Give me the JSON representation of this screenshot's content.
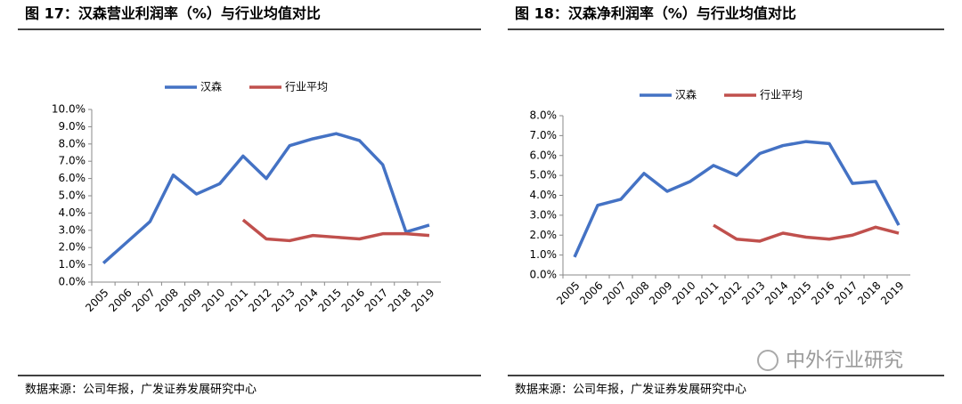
{
  "chart_data": [
    {
      "type": "line",
      "title": "图 17：汉森营业利润率（%）与行业均值对比",
      "categories": [
        "2005",
        "2006",
        "2007",
        "2008",
        "2009",
        "2010",
        "2011",
        "2012",
        "2013",
        "2014",
        "2015",
        "2016",
        "2017",
        "2018",
        "2019"
      ],
      "series": [
        {
          "name": "汉森",
          "color": "#4472c4",
          "values": [
            1.1,
            2.3,
            3.5,
            6.2,
            5.1,
            5.7,
            7.3,
            6.0,
            7.9,
            8.3,
            8.6,
            8.2,
            6.8,
            2.9,
            3.3
          ]
        },
        {
          "name": "行业平均",
          "color": "#c0504d",
          "values": [
            null,
            null,
            null,
            null,
            null,
            null,
            3.6,
            2.5,
            2.4,
            2.7,
            2.6,
            2.5,
            2.8,
            2.8,
            2.7
          ]
        }
      ],
      "ylim": [
        0,
        10
      ],
      "yticks": [
        {
          "value": 0,
          "label": "0.0%"
        },
        {
          "value": 1,
          "label": "1.0%"
        },
        {
          "value": 2,
          "label": "2.0%"
        },
        {
          "value": 3,
          "label": "3.0%"
        },
        {
          "value": 4,
          "label": "4.0%"
        },
        {
          "value": 5,
          "label": "5.0%"
        },
        {
          "value": 6,
          "label": "6.0%"
        },
        {
          "value": 7,
          "label": "7.0%"
        },
        {
          "value": 8,
          "label": "8.0%"
        },
        {
          "value": 9,
          "label": "9.0%"
        },
        {
          "value": 10,
          "label": "10.0%"
        }
      ],
      "grid": false,
      "legend": "top",
      "source": "数据来源：公司年报，广发证券发展研究中心"
    },
    {
      "type": "line",
      "title": "图 18：汉森净利润率（%）与行业均值对比",
      "categories": [
        "2005",
        "2006",
        "2007",
        "2008",
        "2009",
        "2010",
        "2011",
        "2012",
        "2013",
        "2014",
        "2015",
        "2016",
        "2017",
        "2018",
        "2019"
      ],
      "series": [
        {
          "name": "汉森",
          "color": "#4472c4",
          "values": [
            0.9,
            3.5,
            3.8,
            5.1,
            4.2,
            4.7,
            5.5,
            5.0,
            6.1,
            6.5,
            6.7,
            6.6,
            4.6,
            4.7,
            2.5
          ]
        },
        {
          "name": "行业平均",
          "color": "#c0504d",
          "values": [
            null,
            null,
            null,
            null,
            null,
            null,
            2.5,
            1.8,
            1.7,
            2.1,
            1.9,
            1.8,
            2.0,
            2.4,
            2.1
          ]
        }
      ],
      "ylim": [
        0,
        8
      ],
      "yticks": [
        {
          "value": 0,
          "label": "0.0%"
        },
        {
          "value": 1,
          "label": "1.0%"
        },
        {
          "value": 2,
          "label": "2.0%"
        },
        {
          "value": 3,
          "label": "3.0%"
        },
        {
          "value": 4,
          "label": "4.0%"
        },
        {
          "value": 5,
          "label": "5.0%"
        },
        {
          "value": 6,
          "label": "6.0%"
        },
        {
          "value": 7,
          "label": "7.0%"
        },
        {
          "value": 8,
          "label": "8.0%"
        }
      ],
      "grid": false,
      "legend": "top",
      "source": "数据来源：公司年报，广发证券发展研究中心"
    }
  ],
  "watermark": "中外行业研究"
}
